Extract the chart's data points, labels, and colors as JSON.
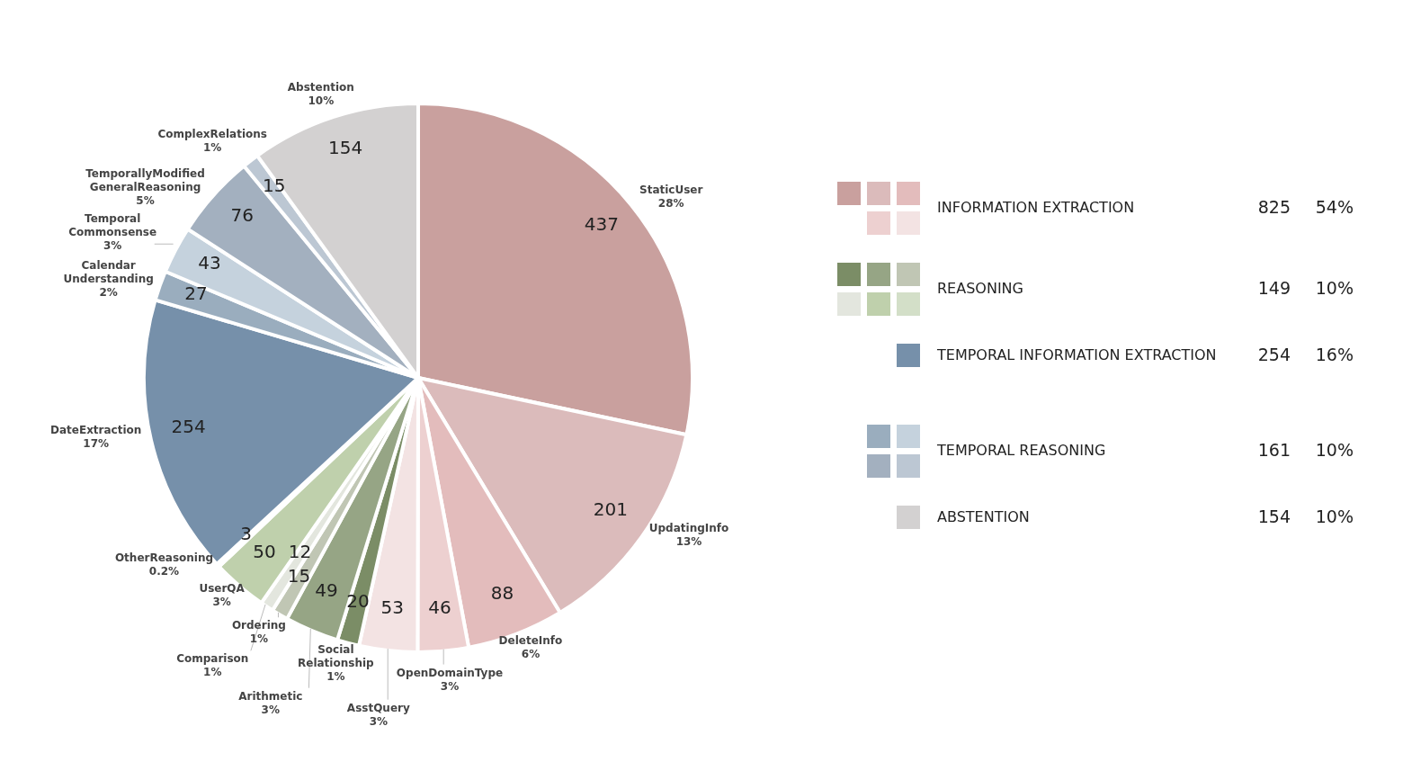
{
  "chart_data": [
    {
      "type": "pie",
      "categories": [
        "StaticUser",
        "UpdatingInfo",
        "DeleteInfo",
        "OpenDomainType",
        "AsstQuery",
        "Social Relationship",
        "Arithmetic",
        "Ordering",
        "Comparison",
        "UserQA",
        "OtherReasoning",
        "DateExtraction",
        "Calendar Understanding",
        "Temporal Commonsense",
        "TemporallyModified GeneralReasoning",
        "ComplexRelations",
        "Abstention"
      ],
      "values": [
        437,
        201,
        88,
        46,
        53,
        20,
        49,
        15,
        12,
        50,
        3,
        254,
        27,
        43,
        76,
        15,
        154
      ],
      "annotations": [
        "28%",
        "13%",
        "6%",
        "3%",
        "3%",
        "1%",
        "3%",
        "1%",
        "1%",
        "3%",
        "0.2%",
        "17%",
        "2%",
        "3%",
        "5%",
        "1%",
        "10%"
      ],
      "colors": [
        "#c9a09e",
        "#dbbbbb",
        "#e3bcbc",
        "#edd0d0",
        "#f3e3e3",
        "#7b8d66",
        "#96a585",
        "#c0c6b4",
        "#e3e6de",
        "#bfd0ac",
        "#d3dfc8",
        "#7690aa",
        "#9aadbe",
        "#c5d2dd",
        "#a3b0bf",
        "#bcc7d3",
        "#d3d1d1"
      ],
      "data_labels": true
    },
    {
      "type": "other",
      "categories": [
        "INFORMATION EXTRACTION",
        "REASONING",
        "TEMPORAL INFORMATION EXTRACTION",
        "TEMPORAL REASONING",
        "ABSTENTION"
      ],
      "values": [
        825,
        149,
        254,
        161,
        154
      ],
      "data_labels": true,
      "annotations": [
        "54%",
        "10%",
        "16%",
        "10%",
        "10%"
      ]
    }
  ]
}
